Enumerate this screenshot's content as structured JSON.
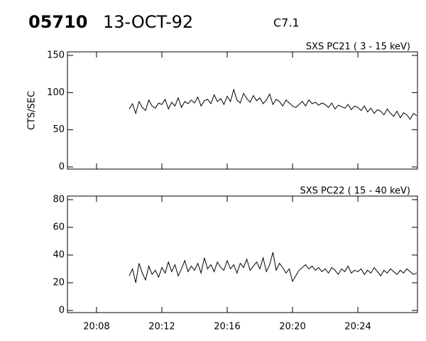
{
  "header": {
    "id": "05710",
    "date": "13-OCT-92",
    "class": "C7.1"
  },
  "chart_data": [
    {
      "type": "line",
      "title": "SXS PC21  (  3 - 15 keV)",
      "ylabel": "CTS/SEC",
      "xlim": [
        6.22,
        27.65
      ],
      "xticks": [
        8,
        12,
        16,
        20,
        24
      ],
      "ylim": [
        0,
        150
      ],
      "yticks": [
        0,
        50,
        100,
        150
      ],
      "color": "#000000",
      "x": [
        10.0,
        10.2,
        10.4,
        10.6,
        10.8,
        11.0,
        11.2,
        11.4,
        11.6,
        11.8,
        12.0,
        12.2,
        12.4,
        12.6,
        12.8,
        13.0,
        13.2,
        13.4,
        13.6,
        13.8,
        14.0,
        14.2,
        14.4,
        14.6,
        14.8,
        15.0,
        15.2,
        15.4,
        15.6,
        15.8,
        16.0,
        16.2,
        16.4,
        16.6,
        16.8,
        17.0,
        17.2,
        17.4,
        17.6,
        17.8,
        18.0,
        18.2,
        18.4,
        18.6,
        18.8,
        19.0,
        19.2,
        19.4,
        19.6,
        19.8,
        20.0,
        20.2,
        20.4,
        20.6,
        20.8,
        21.0,
        21.2,
        21.4,
        21.6,
        21.8,
        22.0,
        22.2,
        22.4,
        22.6,
        22.8,
        23.0,
        23.2,
        23.4,
        23.6,
        23.8,
        24.0,
        24.2,
        24.4,
        24.6,
        24.8,
        25.0,
        25.2,
        25.4,
        25.6,
        25.8,
        26.0,
        26.2,
        26.4,
        26.6,
        26.8,
        27.0,
        27.2,
        27.4,
        27.6
      ],
      "values": [
        78,
        85,
        72,
        88,
        80,
        76,
        90,
        82,
        79,
        86,
        84,
        91,
        78,
        87,
        82,
        93,
        80,
        88,
        85,
        90,
        86,
        94,
        82,
        89,
        91,
        85,
        97,
        88,
        92,
        84,
        95,
        88,
        104,
        90,
        86,
        99,
        92,
        87,
        96,
        89,
        93,
        85,
        90,
        98,
        84,
        91,
        88,
        82,
        90,
        86,
        82,
        80,
        84,
        88,
        82,
        90,
        85,
        87,
        83,
        86,
        84,
        80,
        86,
        78,
        83,
        81,
        79,
        84,
        77,
        82,
        80,
        76,
        82,
        74,
        79,
        72,
        77,
        75,
        70,
        78,
        72,
        68,
        75,
        66,
        73,
        70,
        64,
        72,
        69
      ]
    },
    {
      "type": "line",
      "title": "SXS PC22  ( 15 - 40 keV)",
      "xlim": [
        6.22,
        27.65
      ],
      "xticks": [
        {
          "value": 8,
          "label": "20:08"
        },
        {
          "value": 12,
          "label": "20:12"
        },
        {
          "value": 16,
          "label": "20:16"
        },
        {
          "value": 20,
          "label": "20:20"
        },
        {
          "value": 24,
          "label": "20:24"
        }
      ],
      "ylim": [
        0,
        80
      ],
      "yticks": [
        0,
        20,
        40,
        60,
        80
      ],
      "color": "#000000",
      "x": [
        10.0,
        10.2,
        10.4,
        10.6,
        10.8,
        11.0,
        11.2,
        11.4,
        11.6,
        11.8,
        12.0,
        12.2,
        12.4,
        12.6,
        12.8,
        13.0,
        13.2,
        13.4,
        13.6,
        13.8,
        14.0,
        14.2,
        14.4,
        14.6,
        14.8,
        15.0,
        15.2,
        15.4,
        15.6,
        15.8,
        16.0,
        16.2,
        16.4,
        16.6,
        16.8,
        17.0,
        17.2,
        17.4,
        17.6,
        17.8,
        18.0,
        18.2,
        18.4,
        18.6,
        18.8,
        19.0,
        19.2,
        19.4,
        19.6,
        19.8,
        20.0,
        20.2,
        20.4,
        20.6,
        20.8,
        21.0,
        21.2,
        21.4,
        21.6,
        21.8,
        22.0,
        22.2,
        22.4,
        22.6,
        22.8,
        23.0,
        23.2,
        23.4,
        23.6,
        23.8,
        24.0,
        24.2,
        24.4,
        24.6,
        24.8,
        25.0,
        25.2,
        25.4,
        25.6,
        25.8,
        26.0,
        26.2,
        26.4,
        26.6,
        26.8,
        27.0,
        27.2,
        27.4,
        27.6
      ],
      "values": [
        25,
        30,
        20,
        34,
        27,
        22,
        32,
        26,
        29,
        24,
        31,
        27,
        35,
        28,
        33,
        25,
        30,
        36,
        28,
        32,
        29,
        34,
        27,
        38,
        30,
        33,
        28,
        35,
        31,
        29,
        36,
        30,
        33,
        27,
        34,
        31,
        37,
        29,
        32,
        35,
        30,
        38,
        28,
        33,
        42,
        29,
        34,
        31,
        27,
        30,
        21,
        25,
        29,
        31,
        33,
        30,
        32,
        29,
        31,
        28,
        30,
        27,
        31,
        29,
        26,
        30,
        28,
        32,
        27,
        29,
        28,
        30,
        26,
        29,
        27,
        31,
        28,
        25,
        29,
        27,
        30,
        28,
        26,
        29,
        27,
        30,
        28,
        26,
        27
      ]
    }
  ]
}
